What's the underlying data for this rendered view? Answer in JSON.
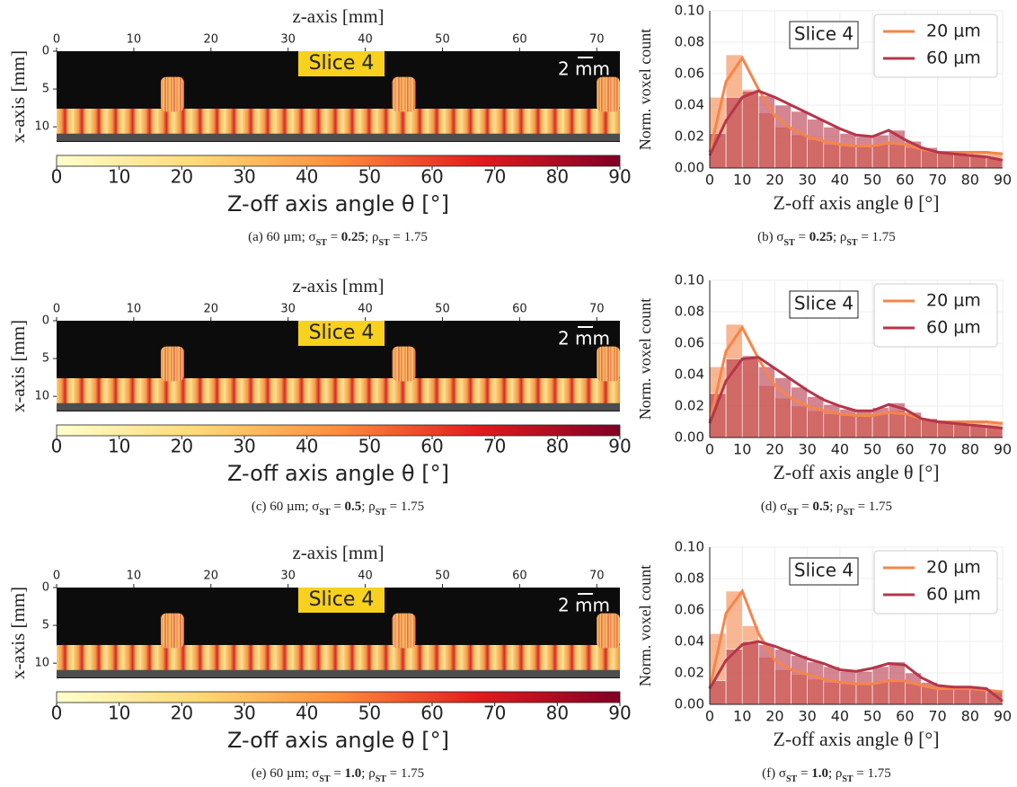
{
  "chart_data": [
    {
      "type": "image",
      "xlabel": "z-axis [mm]",
      "ylabel": "x-axis [mm]",
      "xlim": [
        0,
        73
      ],
      "xticks": [
        0,
        10,
        20,
        30,
        40,
        50,
        60,
        70
      ],
      "ylim": [
        0,
        12
      ],
      "yticks": [
        0,
        5,
        10
      ],
      "annotations": [
        "Slice 4",
        "2 mm"
      ],
      "colorbar": {
        "lim": [
          0,
          90
        ],
        "ticks": [
          0,
          10,
          20,
          30,
          40,
          50,
          60,
          70,
          80,
          90
        ],
        "label": "Z-off axis angle θ [°]",
        "colors": [
          "#ffffcc",
          "#fed976",
          "#fd8d3c",
          "#e31a1c",
          "#800026"
        ]
      },
      "caption": [
        {
          "text": "(a)  60 µm; σ"
        },
        {
          "text": "ST",
          "sub": true
        },
        {
          "text": " = "
        },
        {
          "text": "0.25",
          "bold": true
        },
        {
          "text": "; ρ"
        },
        {
          "text": "ST",
          "sub": true
        },
        {
          "text": " = 1.75"
        }
      ]
    },
    {
      "type": "histogram",
      "xlabel": "Z-off axis angle θ [°]",
      "ylabel": "Norm. voxel count",
      "annotation": "Slice 4",
      "legend": "upper right",
      "grid": true,
      "bins": [
        0,
        5,
        10,
        15,
        20,
        25,
        30,
        35,
        40,
        45,
        50,
        55,
        60,
        65,
        70,
        75,
        80,
        85,
        90
      ],
      "xlim": [
        0,
        90
      ],
      "xticks": [
        0,
        10,
        20,
        30,
        40,
        50,
        60,
        70,
        80,
        90
      ],
      "ylim": [
        0,
        0.1
      ],
      "yticks": [
        {
          "value": 0,
          "label": "0.00"
        },
        {
          "value": 0.02,
          "label": "0.02"
        },
        {
          "value": 0.04,
          "label": "0.04"
        },
        {
          "value": 0.06,
          "label": "0.06"
        },
        {
          "value": 0.08,
          "label": "0.08"
        },
        {
          "value": 0.1,
          "label": "0.10"
        }
      ],
      "series": [
        {
          "name": "20 μm",
          "color": "#f5854a",
          "values": [
            0.045,
            0.072,
            0.05,
            0.035,
            0.026,
            0.021,
            0.018,
            0.015,
            0.014,
            0.014,
            0.015,
            0.016,
            0.013,
            0.011,
            0.01,
            0.01,
            0.01,
            0.01
          ],
          "kde": [
            0.01,
            0.055,
            0.07,
            0.05,
            0.033,
            0.025,
            0.02,
            0.017,
            0.015,
            0.014,
            0.014,
            0.016,
            0.015,
            0.012,
            0.01,
            0.01,
            0.01,
            0.01,
            0.009
          ]
        },
        {
          "name": "60 μm",
          "color": "#b5364a",
          "values": [
            0.022,
            0.045,
            0.049,
            0.046,
            0.04,
            0.036,
            0.031,
            0.026,
            0.022,
            0.02,
            0.021,
            0.024,
            0.017,
            0.013,
            0.01,
            0.009,
            0.008,
            0.006
          ],
          "kde": [
            0.008,
            0.03,
            0.045,
            0.049,
            0.045,
            0.04,
            0.035,
            0.03,
            0.025,
            0.021,
            0.02,
            0.024,
            0.018,
            0.013,
            0.01,
            0.009,
            0.008,
            0.007,
            0.005
          ]
        }
      ],
      "caption": [
        {
          "text": "(b)  σ"
        },
        {
          "text": "ST",
          "sub": true
        },
        {
          "text": " = "
        },
        {
          "text": "0.25",
          "bold": true
        },
        {
          "text": "; ρ"
        },
        {
          "text": "ST",
          "sub": true
        },
        {
          "text": " = 1.75"
        }
      ]
    },
    {
      "type": "image",
      "xlabel": "z-axis [mm]",
      "ylabel": "x-axis [mm]",
      "xlim": [
        0,
        73
      ],
      "xticks": [
        0,
        10,
        20,
        30,
        40,
        50,
        60,
        70
      ],
      "ylim": [
        0,
        12
      ],
      "yticks": [
        0,
        5,
        10
      ],
      "annotations": [
        "Slice 4",
        "2 mm"
      ],
      "colorbar": {
        "lim": [
          0,
          90
        ],
        "ticks": [
          0,
          10,
          20,
          30,
          40,
          50,
          60,
          70,
          80,
          90
        ],
        "label": "Z-off axis angle θ [°]",
        "colors": [
          "#ffffcc",
          "#fed976",
          "#fd8d3c",
          "#e31a1c",
          "#800026"
        ]
      },
      "caption": [
        {
          "text": "(c)  60 µm; σ"
        },
        {
          "text": "ST",
          "sub": true
        },
        {
          "text": " = "
        },
        {
          "text": "0.5",
          "bold": true
        },
        {
          "text": "; ρ"
        },
        {
          "text": "ST",
          "sub": true
        },
        {
          "text": " = 1.75"
        }
      ]
    },
    {
      "type": "histogram",
      "xlabel": "Z-off axis angle θ [°]",
      "ylabel": "Norm. voxel count",
      "annotation": "Slice 4",
      "legend": "upper right",
      "grid": true,
      "bins": [
        0,
        5,
        10,
        15,
        20,
        25,
        30,
        35,
        40,
        45,
        50,
        55,
        60,
        65,
        70,
        75,
        80,
        85,
        90
      ],
      "xlim": [
        0,
        90
      ],
      "xticks": [
        0,
        10,
        20,
        30,
        40,
        50,
        60,
        70,
        80,
        90
      ],
      "ylim": [
        0,
        0.1
      ],
      "yticks": [
        {
          "value": 0,
          "label": "0.00"
        },
        {
          "value": 0.02,
          "label": "0.02"
        },
        {
          "value": 0.04,
          "label": "0.04"
        },
        {
          "value": 0.06,
          "label": "0.06"
        },
        {
          "value": 0.08,
          "label": "0.08"
        },
        {
          "value": 0.1,
          "label": "0.10"
        }
      ],
      "series": [
        {
          "name": "20 μm",
          "color": "#f5854a",
          "values": [
            0.045,
            0.072,
            0.05,
            0.033,
            0.025,
            0.02,
            0.017,
            0.015,
            0.014,
            0.014,
            0.015,
            0.017,
            0.014,
            0.012,
            0.011,
            0.01,
            0.01,
            0.01
          ],
          "kde": [
            0.01,
            0.055,
            0.07,
            0.05,
            0.033,
            0.025,
            0.02,
            0.017,
            0.015,
            0.014,
            0.014,
            0.016,
            0.015,
            0.012,
            0.01,
            0.01,
            0.01,
            0.01,
            0.009
          ]
        },
        {
          "name": "60 μm",
          "color": "#b5364a",
          "values": [
            0.028,
            0.05,
            0.052,
            0.045,
            0.038,
            0.032,
            0.026,
            0.021,
            0.018,
            0.017,
            0.019,
            0.022,
            0.016,
            0.012,
            0.01,
            0.009,
            0.008,
            0.007
          ],
          "kde": [
            0.009,
            0.036,
            0.05,
            0.051,
            0.044,
            0.037,
            0.03,
            0.024,
            0.02,
            0.017,
            0.017,
            0.021,
            0.018,
            0.012,
            0.01,
            0.009,
            0.008,
            0.007,
            0.006
          ]
        }
      ],
      "caption": [
        {
          "text": "(d)  σ"
        },
        {
          "text": "ST",
          "sub": true
        },
        {
          "text": " = "
        },
        {
          "text": "0.5",
          "bold": true
        },
        {
          "text": "; ρ"
        },
        {
          "text": "ST",
          "sub": true
        },
        {
          "text": " = 1.75"
        }
      ]
    },
    {
      "type": "image",
      "xlabel": "z-axis [mm]",
      "ylabel": "x-axis [mm]",
      "xlim": [
        0,
        73
      ],
      "xticks": [
        0,
        10,
        20,
        30,
        40,
        50,
        60,
        70
      ],
      "ylim": [
        0,
        12
      ],
      "yticks": [
        0,
        5,
        10
      ],
      "annotations": [
        "Slice 4",
        "2 mm"
      ],
      "colorbar": {
        "lim": [
          0,
          90
        ],
        "ticks": [
          0,
          10,
          20,
          30,
          40,
          50,
          60,
          70,
          80,
          90
        ],
        "label": "Z-off axis angle θ [°]",
        "colors": [
          "#ffffcc",
          "#fed976",
          "#fd8d3c",
          "#e31a1c",
          "#800026"
        ]
      },
      "caption": [
        {
          "text": "(e)  60 µm; σ"
        },
        {
          "text": "ST",
          "sub": true
        },
        {
          "text": " = "
        },
        {
          "text": "1.0",
          "bold": true
        },
        {
          "text": "; ρ"
        },
        {
          "text": "ST",
          "sub": true
        },
        {
          "text": " = 1.75"
        }
      ]
    },
    {
      "type": "histogram",
      "xlabel": "Z-off axis angle θ [°]",
      "ylabel": "Norm. voxel count",
      "annotation": "Slice 4",
      "legend": "upper right",
      "grid": true,
      "bins": [
        0,
        5,
        10,
        15,
        20,
        25,
        30,
        35,
        40,
        45,
        50,
        55,
        60,
        65,
        70,
        75,
        80,
        85,
        90
      ],
      "xlim": [
        0,
        90
      ],
      "xticks": [
        0,
        10,
        20,
        30,
        40,
        50,
        60,
        70,
        80,
        90
      ],
      "ylim": [
        0,
        0.1
      ],
      "yticks": [
        {
          "value": 0,
          "label": "0.00"
        },
        {
          "value": 0.02,
          "label": "0.02"
        },
        {
          "value": 0.04,
          "label": "0.04"
        },
        {
          "value": 0.06,
          "label": "0.06"
        },
        {
          "value": 0.08,
          "label": "0.08"
        },
        {
          "value": 0.1,
          "label": "0.10"
        }
      ],
      "series": [
        {
          "name": "20 μm",
          "color": "#f5854a",
          "values": [
            0.045,
            0.072,
            0.05,
            0.03,
            0.022,
            0.019,
            0.016,
            0.014,
            0.013,
            0.013,
            0.014,
            0.015,
            0.013,
            0.011,
            0.01,
            0.01,
            0.01,
            0.009
          ],
          "kde": [
            0.01,
            0.058,
            0.072,
            0.045,
            0.028,
            0.022,
            0.019,
            0.016,
            0.014,
            0.013,
            0.013,
            0.015,
            0.015,
            0.012,
            0.01,
            0.01,
            0.01,
            0.009,
            0.008
          ]
        },
        {
          "name": "60 μm",
          "color": "#b5364a",
          "values": [
            0.015,
            0.035,
            0.04,
            0.038,
            0.035,
            0.031,
            0.027,
            0.024,
            0.021,
            0.021,
            0.024,
            0.027,
            0.02,
            0.014,
            0.012,
            0.011,
            0.011,
            0.008
          ],
          "kde": [
            0.01,
            0.028,
            0.038,
            0.04,
            0.037,
            0.033,
            0.029,
            0.026,
            0.022,
            0.021,
            0.023,
            0.026,
            0.025,
            0.017,
            0.012,
            0.011,
            0.011,
            0.01,
            0.002
          ]
        }
      ],
      "caption": [
        {
          "text": "(f)  σ"
        },
        {
          "text": "ST",
          "sub": true
        },
        {
          "text": " = "
        },
        {
          "text": "1.0",
          "bold": true
        },
        {
          "text": "; ρ"
        },
        {
          "text": "ST",
          "sub": true
        },
        {
          "text": " = 1.75"
        }
      ]
    }
  ]
}
